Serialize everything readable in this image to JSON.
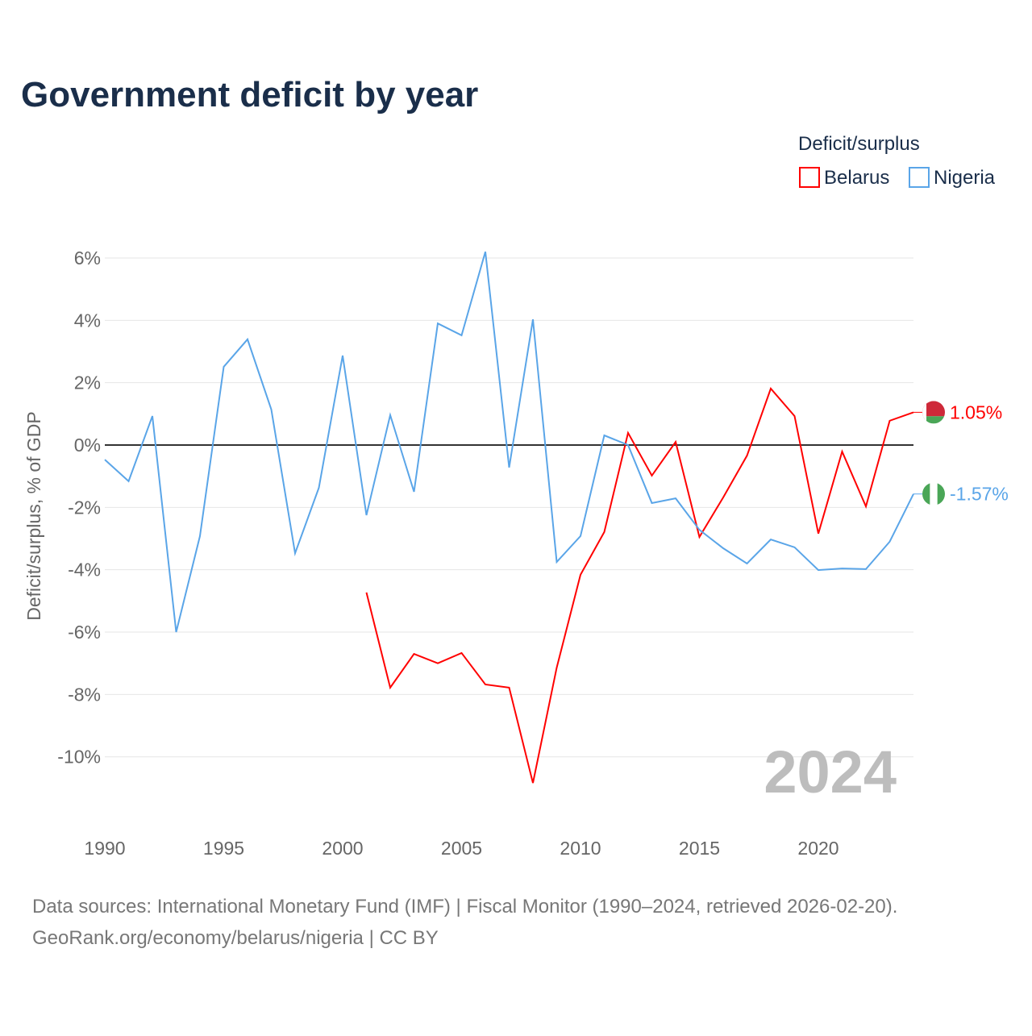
{
  "chart_data": {
    "type": "line",
    "title": "Government deficit by year",
    "ylabel": "Deficit/surplus, % of GDP",
    "xlabel": "",
    "legend_title": "Deficit/surplus",
    "legend_position": "top-right",
    "ylim": [
      -11.8,
      6.8
    ],
    "xlim": [
      1990,
      2024
    ],
    "yticks": [
      6,
      4,
      2,
      0,
      -2,
      -4,
      -6,
      -8,
      -10
    ],
    "ytick_labels": [
      "6%",
      "4%",
      "2%",
      "0%",
      "-2%",
      "-4%",
      "-6%",
      "-8%",
      "-10%"
    ],
    "xticks": [
      1990,
      1995,
      2000,
      2005,
      2010,
      2015,
      2020
    ],
    "xtick_labels": [
      "1990",
      "1995",
      "2000",
      "2005",
      "2010",
      "2015",
      "2020"
    ],
    "grid": true,
    "year_watermark": "2024",
    "series": [
      {
        "name": "Belarus",
        "color": "#ff0000",
        "end_label": "1.05%",
        "x": [
          2001,
          2002,
          2003,
          2004,
          2005,
          2006,
          2007,
          2008,
          2009,
          2010,
          2011,
          2012,
          2013,
          2014,
          2015,
          2016,
          2017,
          2018,
          2019,
          2020,
          2021,
          2022,
          2023,
          2024
        ],
        "values": [
          -4.73,
          -7.78,
          -6.7,
          -7.0,
          -6.67,
          -7.68,
          -7.78,
          -10.84,
          -7.14,
          -4.16,
          -2.79,
          0.39,
          -0.98,
          0.1,
          -2.95,
          -1.68,
          -0.34,
          1.81,
          0.93,
          -2.84,
          -0.21,
          -1.97,
          0.78,
          1.05
        ]
      },
      {
        "name": "Nigeria",
        "color": "#5aa5e8",
        "end_label": "-1.57%",
        "x": [
          1990,
          1991,
          1992,
          1993,
          1994,
          1995,
          1996,
          1997,
          1998,
          1999,
          2000,
          2001,
          2002,
          2003,
          2004,
          2005,
          2006,
          2007,
          2008,
          2009,
          2010,
          2011,
          2012,
          2013,
          2014,
          2015,
          2016,
          2017,
          2018,
          2019,
          2020,
          2021,
          2022,
          2023,
          2024
        ],
        "values": [
          -0.47,
          -1.16,
          0.93,
          -6.0,
          -2.92,
          2.51,
          3.39,
          1.14,
          -3.47,
          -1.37,
          2.87,
          -2.25,
          0.96,
          -1.5,
          3.9,
          3.52,
          6.2,
          -0.72,
          4.03,
          -3.75,
          -2.92,
          0.31,
          0.0,
          -1.86,
          -1.71,
          -2.72,
          -3.31,
          -3.8,
          -3.03,
          -3.28,
          -4.01,
          -3.96,
          -3.98,
          -3.1,
          -1.57
        ]
      }
    ]
  },
  "footer": {
    "source": "Data sources: International Monetary Fund (IMF) | Fiscal Monitor (1990–2024, retrieved 2026-02-20).",
    "link": "GeoRank.org/economy/belarus/nigeria | CC BY"
  }
}
